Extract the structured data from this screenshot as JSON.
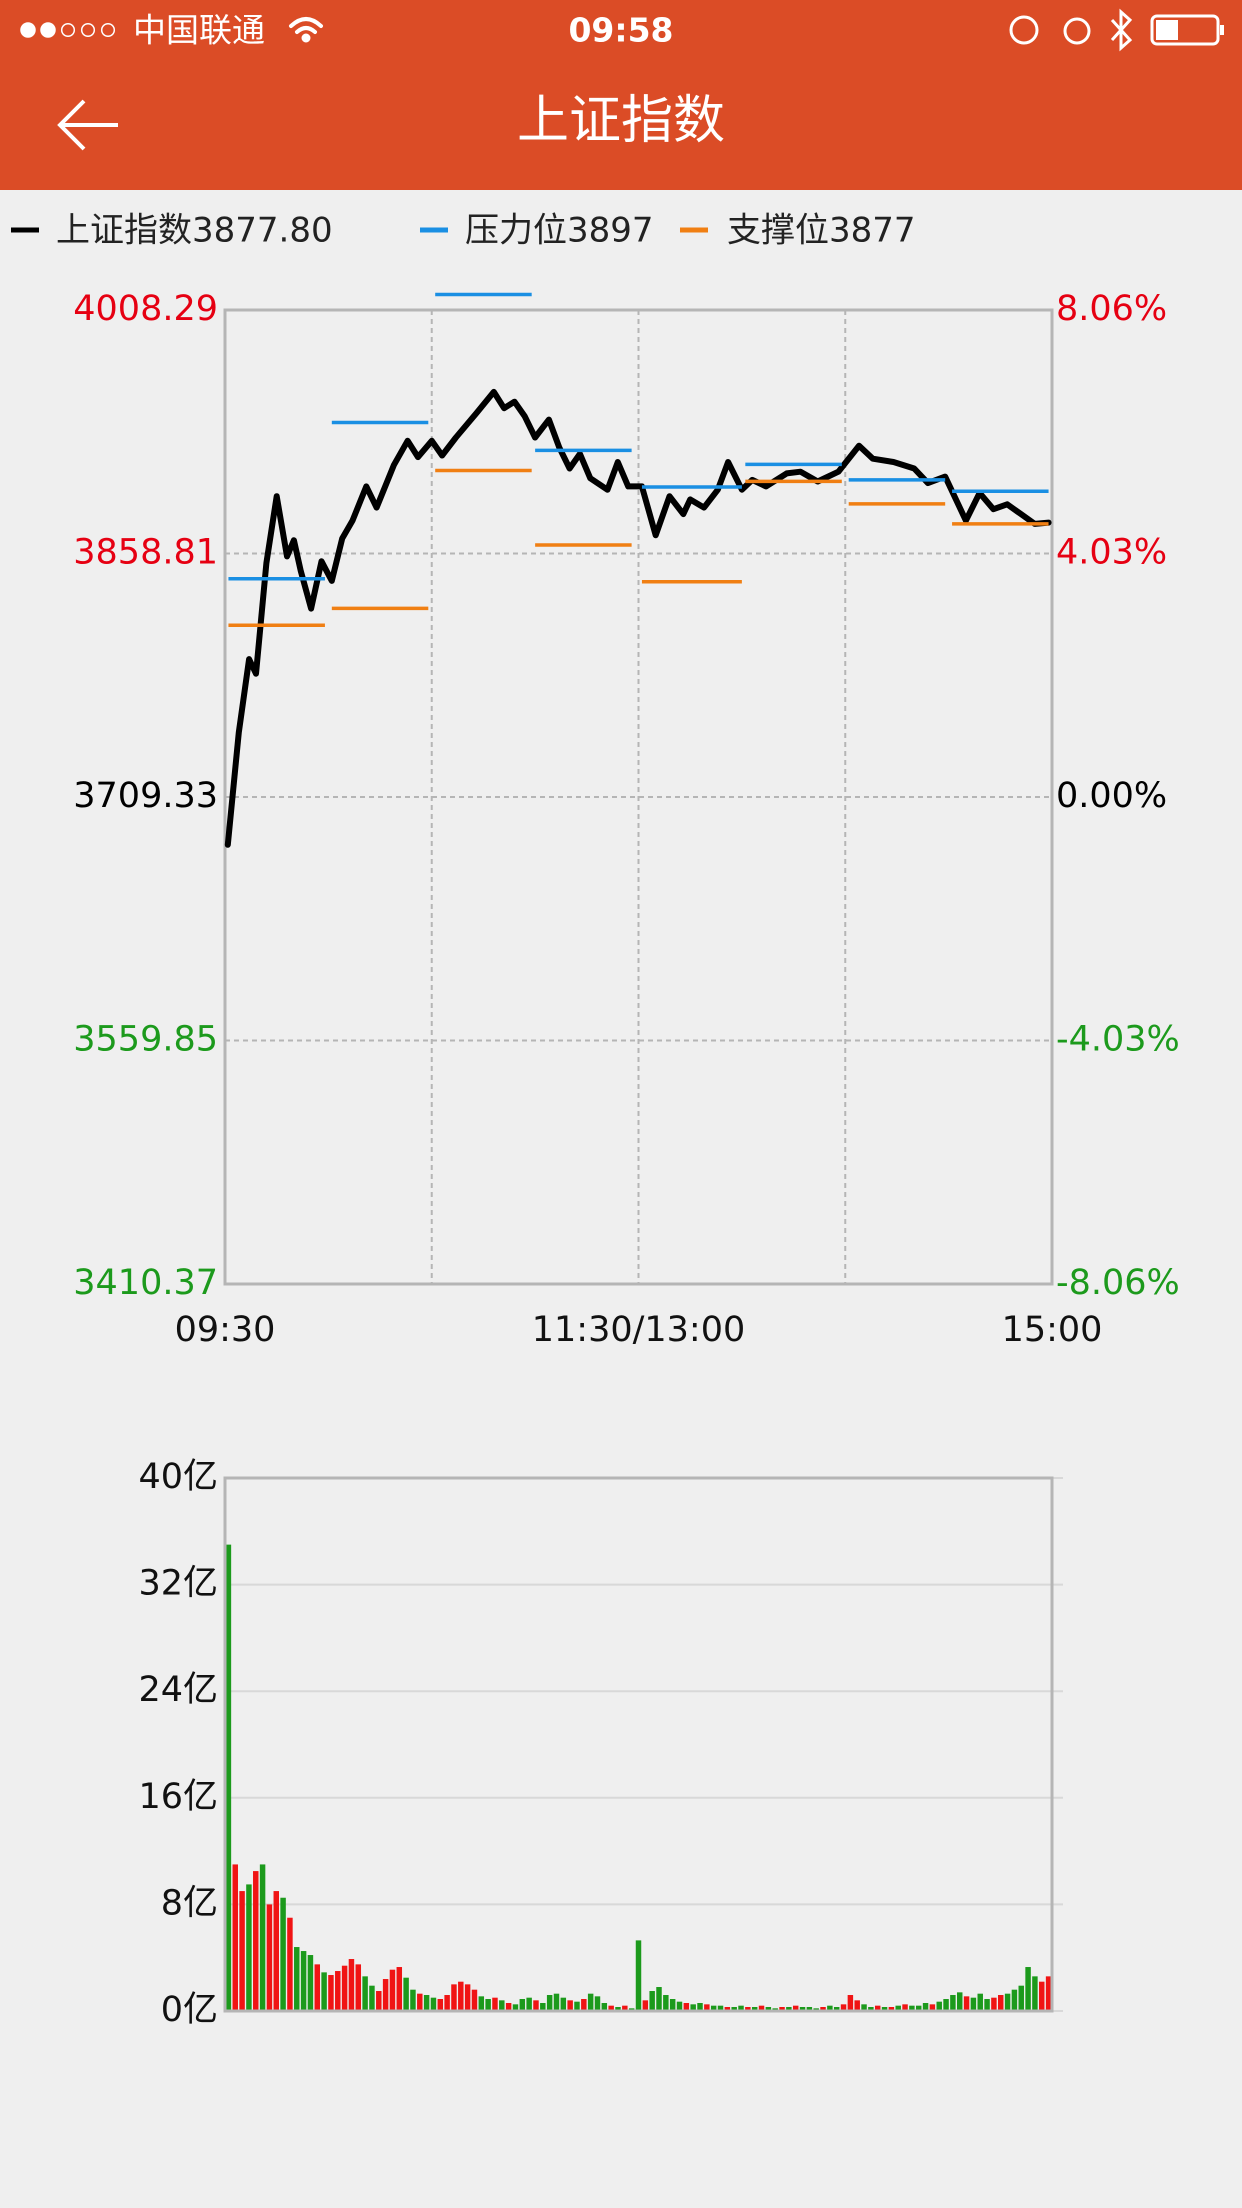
{
  "status_bar": {
    "carrier": "中国联通",
    "time": "09:58"
  },
  "header": {
    "title": "上证指数"
  },
  "chart_data": [
    {
      "type": "line",
      "series": [
        {
          "name": "上证指数3877.80",
          "color": "#000000",
          "x": [
            0.8,
            4,
            7,
            9,
            12,
            15,
            18,
            20,
            22,
            25,
            28,
            31,
            34,
            37,
            41,
            44,
            49,
            53,
            56,
            60,
            63,
            67,
            73,
            78,
            81,
            84,
            87,
            90,
            94,
            97,
            100,
            103,
            106,
            111,
            114,
            117,
            121,
            125,
            129,
            133,
            135,
            139,
            143,
            146,
            150,
            153,
            157,
            163,
            167,
            172,
            178,
            184,
            188,
            194,
            200,
            204,
            209,
            215,
            219,
            223,
            227,
            231,
            235,
            239
          ],
          "values": [
            3680,
            3749,
            3794,
            3785,
            3853,
            3894,
            3857,
            3867,
            3848,
            3825,
            3854,
            3842,
            3868,
            3879,
            3900,
            3887,
            3913,
            3928,
            3918,
            3928,
            3919,
            3930,
            3945,
            3958,
            3948,
            3952,
            3943,
            3930,
            3941,
            3924,
            3911,
            3920,
            3905,
            3898,
            3915,
            3900,
            3900,
            3870,
            3894,
            3883,
            3892,
            3887,
            3898,
            3915,
            3898,
            3904,
            3900,
            3908,
            3909,
            3903,
            3909,
            3925,
            3917,
            3915,
            3911,
            3902,
            3906,
            3879,
            3896,
            3886,
            3889,
            3883,
            3877,
            3877.8
          ]
        },
        {
          "name": "压力位3897",
          "color": "#1a8fe3",
          "values": [
            3843.3,
            3939.2,
            4017.8,
            3922.1,
            3899.6,
            3913.5,
            3904,
            3897
          ]
        },
        {
          "name": "支撑位3877",
          "color": "#f07f13",
          "values": [
            3814.8,
            3825.1,
            3909.8,
            3864,
            3841.5,
            3903.1,
            3889.3,
            3877
          ]
        }
      ],
      "level_periods": [
        {
          "start": 1,
          "end": 29
        },
        {
          "start": 31,
          "end": 59
        },
        {
          "start": 61,
          "end": 89
        },
        {
          "start": 90,
          "end": 118
        },
        {
          "start": 121,
          "end": 150
        },
        {
          "start": 151,
          "end": 179
        },
        {
          "start": 181,
          "end": 209
        },
        {
          "start": 211,
          "end": 239
        }
      ],
      "xlim": [
        0,
        240
      ],
      "xticks": [
        {
          "value": 0,
          "label": "09:30"
        },
        {
          "value": 60,
          "label": null
        },
        {
          "value": 120,
          "label": "11:30/13:00"
        },
        {
          "value": 180,
          "label": null
        },
        {
          "value": 240,
          "label": "15:00"
        }
      ],
      "ylim": [
        3410.37,
        4008.29
      ],
      "yticks": [
        3410.37,
        3559.85,
        3709.33,
        3858.81,
        4008.29
      ],
      "y2lim": [
        -8.06,
        8.06
      ],
      "y2ticks": [
        {
          "value": -8.06,
          "label": "-8.06%"
        },
        {
          "value": -4.03,
          "label": "-4.03%"
        },
        {
          "value": 0,
          "label": "0.00%"
        },
        {
          "value": 4.03,
          "label": "4.03%"
        },
        {
          "value": 8.06,
          "label": "8.06%"
        }
      ],
      "up_color": "#e60012",
      "down_color": "#1c9a1c",
      "flat_color": "#000000",
      "grid": true
    },
    {
      "type": "bar",
      "values": [
        35,
        11,
        9,
        9.5,
        10.5,
        11,
        8,
        9,
        8.5,
        7,
        4.8,
        4.5,
        4.2,
        3.5,
        2.9,
        2.7,
        3,
        3.4,
        3.9,
        3.5,
        2.6,
        1.9,
        1.5,
        2.4,
        3.1,
        3.3,
        2.5,
        1.6,
        1.3,
        1.2,
        1,
        0.9,
        1.2,
        2,
        2.2,
        2,
        1.6,
        1.1,
        0.9,
        1,
        0.8,
        0.6,
        0.5,
        0.9,
        1,
        0.8,
        0.6,
        1.2,
        1.3,
        1,
        0.8,
        0.7,
        0.9,
        1.3,
        1.1,
        0.6,
        0.4,
        0.3,
        0.4,
        0.2,
        5.3,
        0.8,
        1.5,
        1.8,
        1.2,
        0.9,
        0.7,
        0.6,
        0.5,
        0.6,
        0.5,
        0.4,
        0.4,
        0.3,
        0.3,
        0.4,
        0.3,
        0.3,
        0.4,
        0.3,
        0.2,
        0.3,
        0.3,
        0.4,
        0.3,
        0.3,
        0.2,
        0.3,
        0.4,
        0.3,
        0.5,
        1.2,
        0.8,
        0.5,
        0.3,
        0.4,
        0.3,
        0.3,
        0.4,
        0.5,
        0.4,
        0.4,
        0.6,
        0.5,
        0.7,
        0.9,
        1.2,
        1.4,
        1.1,
        1,
        1.3,
        0.9,
        1,
        1.2,
        1.3,
        1.6,
        1.9,
        3.3,
        2.6,
        2.2,
        2.6
      ],
      "rising": [
        false,
        true,
        true,
        false,
        true,
        false,
        true,
        true,
        false,
        true,
        false,
        false,
        false,
        true,
        false,
        true,
        true,
        true,
        true,
        true,
        false,
        false,
        true,
        true,
        true,
        true,
        false,
        false,
        true,
        false,
        false,
        true,
        true,
        true,
        true,
        true,
        true,
        false,
        false,
        true,
        false,
        true,
        false,
        false,
        false,
        true,
        false,
        false,
        false,
        false,
        true,
        false,
        true,
        false,
        false,
        false,
        true,
        false,
        true,
        false,
        false,
        true,
        false,
        false,
        false,
        false,
        false,
        true,
        false,
        false,
        true,
        false,
        false,
        true,
        false,
        false,
        true,
        false,
        true,
        false,
        false,
        true,
        false,
        true,
        false,
        false,
        false,
        true,
        false,
        false,
        true,
        true,
        true,
        false,
        false,
        true,
        false,
        true,
        false,
        true,
        false,
        false,
        false,
        true,
        false,
        false,
        false,
        false,
        true,
        false,
        false,
        false,
        true,
        true,
        false,
        false,
        false,
        false,
        false,
        true,
        true
      ],
      "up_color": "#f01414",
      "down_color": "#1c9a1c",
      "ylim": [
        0,
        40
      ],
      "yticks": [
        {
          "value": 0,
          "label": "0亿"
        },
        {
          "value": 8,
          "label": "8亿"
        },
        {
          "value": 16,
          "label": "16亿"
        },
        {
          "value": 24,
          "label": "24亿"
        },
        {
          "value": 32,
          "label": "32亿"
        },
        {
          "value": 40,
          "label": "40亿"
        }
      ],
      "grid": true
    }
  ]
}
